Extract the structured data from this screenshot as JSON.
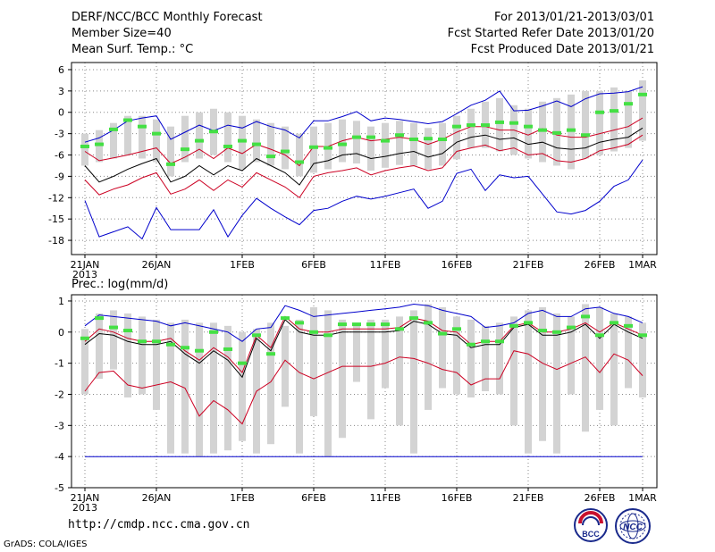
{
  "header": {
    "title": "DERF/NCC/BCC Monthly Forecast",
    "member_size": "Member Size=40",
    "variable": "Mean Surf. Temp.: °C",
    "period": "For 2013/01/21-2013/03/01",
    "started": "Fcst Started Refer Date 2013/01/20",
    "produced": "Fcst Produced Date 2013/01/21"
  },
  "footer": {
    "url": "http://cmdp.ncc.cma.gov.cn",
    "credit": "GrADS: COLA/IGES",
    "logo_left_text": "BCC",
    "logo_right_text": "NCC"
  },
  "colors": {
    "ensemble_bar": "#d3d3d3",
    "median": "#44e044",
    "max_line": "#0000cc",
    "mean_line": "#000000",
    "spread_line": "#cc0022",
    "min_line": "#0000cc"
  },
  "chart_data": [
    {
      "type": "line",
      "title": "Mean Surf. Temp.: °C",
      "x_ticks": [
        "21JAN",
        "26JAN",
        "1FEB",
        "6FEB",
        "11FEB",
        "16FEB",
        "21FEB",
        "26FEB",
        "1MAR"
      ],
      "x_tick_days": [
        0,
        5,
        11,
        16,
        21,
        26,
        31,
        36,
        39
      ],
      "x_sublabel": "2013",
      "ylim": [
        -20,
        7
      ],
      "y_ticks": [
        6,
        3,
        0,
        -3,
        -6,
        -9,
        -12,
        -15,
        -18
      ],
      "ensemble_range": {
        "low": [
          -7.5,
          -7,
          -6.5,
          -6,
          -6.5,
          -7,
          -9,
          -7,
          -6.5,
          -6,
          -7,
          -8,
          -7,
          -7.5,
          -8,
          -9,
          -8.5,
          -8,
          -7,
          -7.2,
          -8.2,
          -7.8,
          -7.4,
          -7.5,
          -8,
          -7.5,
          -6.6,
          -5,
          -5,
          -5.5,
          -6,
          -6.5,
          -7,
          -7.5,
          -8,
          -6.5,
          -6,
          -5.5,
          -5,
          -4
        ],
        "high": [
          -3,
          -2.5,
          -1.5,
          -0.5,
          -0.5,
          -1,
          -2,
          -0.5,
          0,
          0.5,
          0,
          -0.5,
          -1,
          -1.5,
          -2,
          -3,
          -2,
          -1.5,
          -1,
          -1.2,
          -2,
          -1.5,
          -1.2,
          -1.5,
          -2.2,
          -1.5,
          -0.5,
          0.5,
          1.5,
          2,
          1,
          0.5,
          1.5,
          2,
          2.5,
          3,
          3,
          3.5,
          3,
          4.5
        ]
      },
      "series": [
        {
          "name": "max",
          "color": "#0000cc",
          "values": [
            -4.2,
            -3.6,
            -2.5,
            -1.2,
            -0.8,
            -0.5,
            -3.8,
            -2.8,
            -1.8,
            -2.6,
            -1.8,
            -2.2,
            -1.3,
            -2.0,
            -2.5,
            -3.6,
            -1.2,
            -1.2,
            -0.6,
            0.1,
            -1.2,
            -0.8,
            -1.0,
            -1.3,
            -1.6,
            -1.3,
            -0.2,
            1.0,
            1.7,
            3.0,
            0.2,
            0.3,
            0.9,
            1.6,
            0.8,
            1.9,
            2.6,
            2.7,
            2.9,
            3.6
          ]
        },
        {
          "name": "spread-upper",
          "color": "#cc0022",
          "values": [
            -5.5,
            -6.8,
            -6.4,
            -6.0,
            -5.5,
            -5.0,
            -7.2,
            -6.3,
            -5.2,
            -6.5,
            -5.0,
            -5.8,
            -4.5,
            -5.2,
            -6.0,
            -7.5,
            -4.8,
            -4.8,
            -4.0,
            -3.5,
            -4.0,
            -3.8,
            -3.5,
            -3.8,
            -4.5,
            -3.8,
            -2.8,
            -2.0,
            -2.0,
            -2.5,
            -2.5,
            -3.2,
            -2.3,
            -3.2,
            -3.5,
            -3.5,
            -3.0,
            -2.5,
            -2.0,
            -0.8
          ]
        },
        {
          "name": "mean",
          "color": "#000000",
          "values": [
            -7.5,
            -9.8,
            -9.0,
            -8.0,
            -7.2,
            -6.5,
            -9.8,
            -9.0,
            -7.5,
            -8.8,
            -7.5,
            -8.2,
            -6.5,
            -7.5,
            -8.5,
            -10.2,
            -7.2,
            -6.8,
            -6.0,
            -5.8,
            -6.5,
            -6.2,
            -5.8,
            -5.5,
            -6.3,
            -5.8,
            -4.2,
            -3.5,
            -3.2,
            -3.8,
            -3.6,
            -4.5,
            -4.2,
            -5.0,
            -5.2,
            -5.0,
            -4.2,
            -3.8,
            -3.5,
            -2.2
          ]
        },
        {
          "name": "spread-lower",
          "color": "#cc0022",
          "values": [
            -9.5,
            -11.6,
            -10.8,
            -10.2,
            -9.2,
            -8.5,
            -11.5,
            -10.8,
            -9.5,
            -11.0,
            -9.5,
            -10.5,
            -8.5,
            -9.5,
            -10.5,
            -12.0,
            -9.0,
            -8.5,
            -8.2,
            -7.8,
            -8.8,
            -8.2,
            -7.8,
            -7.5,
            -8.2,
            -7.8,
            -5.5,
            -5.0,
            -4.6,
            -5.4,
            -5.0,
            -6.0,
            -5.8,
            -6.8,
            -7.0,
            -6.5,
            -5.4,
            -5.0,
            -4.5,
            -3.2
          ]
        },
        {
          "name": "min",
          "color": "#0000cc",
          "values": [
            -12.4,
            -17.5,
            -16.8,
            -16.1,
            -17.8,
            -13.4,
            -16.5,
            -16.5,
            -16.5,
            -13.7,
            -17.5,
            -14.5,
            -12.1,
            -13.5,
            -14.7,
            -15.8,
            -13.8,
            -13.5,
            -12.5,
            -11.8,
            -12.2,
            -11.8,
            -11.3,
            -10.8,
            -13.5,
            -12.5,
            -8.6,
            -8.0,
            -11.0,
            -8.8,
            -9.2,
            -9.0,
            -11.5,
            -14.0,
            -14.3,
            -13.8,
            -12.5,
            -10.4,
            -9.5,
            -6.7
          ]
        }
      ],
      "medians": [
        -4.8,
        -4.5,
        -2.4,
        -1.1,
        -2.0,
        -3.0,
        -7.3,
        -5.2,
        -4.0,
        -2.7,
        -4.8,
        -4.0,
        -4.5,
        -6.2,
        -5.5,
        -7.0,
        -4.9,
        -5.0,
        -4.5,
        -3.5,
        -3.5,
        -4.0,
        -3.2,
        -3.8,
        -3.7,
        -3.8,
        -2.0,
        -1.8,
        -1.8,
        -1.4,
        -1.5,
        -2.0,
        -2.5,
        -2.9,
        -2.5,
        -3.2,
        0.0,
        0.2,
        1.2,
        2.5
      ]
    },
    {
      "type": "line",
      "title": "Prec.: log(mm/d)",
      "x_ticks": [
        "21JAN",
        "26JAN",
        "1FEB",
        "6FEB",
        "11FEB",
        "16FEB",
        "21FEB",
        "26FEB",
        "1MAR"
      ],
      "x_tick_days": [
        0,
        5,
        11,
        16,
        21,
        26,
        31,
        36,
        39
      ],
      "x_sublabel": "2013",
      "ylim": [
        -5,
        1.2
      ],
      "y_ticks": [
        1,
        0,
        -1,
        -2,
        -3,
        -4,
        -5
      ],
      "ensemble_range": {
        "low": [
          -2.0,
          -1.5,
          -1.2,
          -2.1,
          -2.0,
          -2.5,
          -3.9,
          -3.9,
          -4.0,
          -3.9,
          -3.8,
          -3.5,
          -3.9,
          -3.6,
          -2.4,
          -3.9,
          -2.7,
          -4.0,
          -3.4,
          -1.6,
          -2.8,
          -1.8,
          -3.0,
          -3.9,
          -2.5,
          -1.8,
          -2.0,
          -2.1,
          -1.9,
          -2.0,
          -3.0,
          -3.9,
          -3.5,
          -3.9,
          -2.0,
          -3.2,
          -2.5,
          -3.0,
          -1.8,
          -2.1
        ],
        "high": [
          0.1,
          0.6,
          0.7,
          0.6,
          0.5,
          0.4,
          0.3,
          0.4,
          0.3,
          0.3,
          0.2,
          0.0,
          0.1,
          0.3,
          0.2,
          0.4,
          0.8,
          0.7,
          0.4,
          0.3,
          0.4,
          0.4,
          0.5,
          0.7,
          0.9,
          0.8,
          0.5,
          0.4,
          0.2,
          0.3,
          0.5,
          0.7,
          0.8,
          0.6,
          0.5,
          0.9,
          0.8,
          0.6,
          0.5,
          0.3
        ]
      },
      "series": [
        {
          "name": "max",
          "color": "#0000cc",
          "values": [
            0.2,
            0.55,
            0.5,
            0.45,
            0.4,
            0.35,
            0.2,
            0.3,
            0.2,
            0.1,
            0.0,
            -0.3,
            0.1,
            0.15,
            0.85,
            0.7,
            0.5,
            0.55,
            0.6,
            0.65,
            0.7,
            0.75,
            0.8,
            0.9,
            0.85,
            0.7,
            0.6,
            0.5,
            0.15,
            0.2,
            0.3,
            0.6,
            0.7,
            0.5,
            0.5,
            0.75,
            0.8,
            0.6,
            0.5,
            0.3
          ]
        },
        {
          "name": "spread-upper",
          "color": "#cc0022",
          "values": [
            -0.3,
            0.1,
            0.0,
            -0.2,
            -0.3,
            -0.3,
            -0.2,
            -0.6,
            -0.9,
            -0.5,
            -0.8,
            -1.3,
            -0.1,
            -0.5,
            0.5,
            0.1,
            0.0,
            0.0,
            0.1,
            0.1,
            0.1,
            0.1,
            0.15,
            0.45,
            0.35,
            0.05,
            0.0,
            -0.4,
            -0.3,
            -0.3,
            0.2,
            0.3,
            0.0,
            0.0,
            0.1,
            0.3,
            0.0,
            0.3,
            0.1,
            -0.1
          ]
        },
        {
          "name": "mean",
          "color": "#000000",
          "values": [
            -0.4,
            -0.05,
            -0.1,
            -0.3,
            -0.4,
            -0.4,
            -0.3,
            -0.7,
            -1.0,
            -0.6,
            -0.9,
            -1.45,
            -0.2,
            -0.6,
            0.4,
            0.0,
            -0.1,
            -0.1,
            0.0,
            0.0,
            0.0,
            0.0,
            0.05,
            0.35,
            0.25,
            -0.05,
            -0.1,
            -0.5,
            -0.4,
            -0.4,
            0.15,
            0.25,
            -0.1,
            -0.1,
            0.0,
            0.25,
            -0.2,
            0.25,
            0.0,
            -0.2
          ]
        },
        {
          "name": "spread-lower",
          "color": "#cc0022",
          "values": [
            -1.9,
            -1.3,
            -1.25,
            -1.7,
            -1.8,
            -1.7,
            -1.6,
            -1.8,
            -2.7,
            -2.2,
            -2.5,
            -2.95,
            -1.9,
            -1.6,
            -0.9,
            -1.3,
            -1.5,
            -1.3,
            -1.1,
            -1.1,
            -1.1,
            -1.0,
            -0.8,
            -0.85,
            -1.0,
            -1.2,
            -1.3,
            -1.7,
            -1.5,
            -1.5,
            -0.6,
            -0.7,
            -1.0,
            -1.2,
            -1.0,
            -0.8,
            -1.3,
            -0.7,
            -0.9,
            -1.4
          ]
        },
        {
          "name": "min",
          "color": "#0000cc",
          "values": [
            -4,
            -4,
            -4,
            -4,
            -4,
            -4,
            -4,
            -4,
            -4,
            -4,
            -4,
            -4,
            -4,
            -4,
            -4,
            -4,
            -4,
            -4,
            -4,
            -4,
            -4,
            -4,
            -4,
            -4,
            -4,
            -4,
            -4,
            -4,
            -4,
            -4,
            -4,
            -4,
            -4,
            -4,
            -4,
            -4,
            -4,
            -4,
            -4,
            -4
          ]
        }
      ],
      "medians": [
        -0.2,
        0.45,
        0.15,
        0.05,
        -0.3,
        -0.3,
        -0.4,
        -0.5,
        -0.6,
        0.0,
        -0.55,
        -1.0,
        -0.1,
        -0.7,
        0.45,
        0.3,
        0.0,
        -0.1,
        0.25,
        0.25,
        0.25,
        0.25,
        0.1,
        0.45,
        0.3,
        -0.05,
        0.1,
        -0.4,
        -0.3,
        -0.3,
        0.2,
        0.3,
        0.05,
        0.0,
        0.15,
        0.5,
        -0.1,
        0.3,
        0.2,
        -0.1
      ]
    }
  ]
}
